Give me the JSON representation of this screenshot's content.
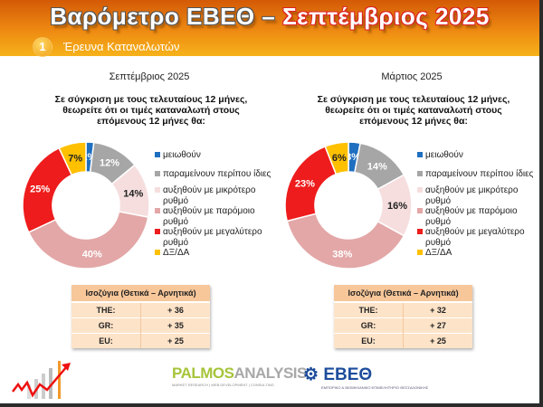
{
  "header": {
    "title_main": "Βαρόμετρο ΕΒΕΘ – ",
    "title_accent": "Σεπτέμβριος 2025",
    "section_number": "1",
    "subtitle": "Έρευνα Καταναλωτών"
  },
  "legend_labels": [
    "μειωθούν",
    "παραμείνουν περίπου ίδιες",
    "αυξηθούν με μικρότερο ρυθμό",
    "αυξηθούν με παρόμοιο ρυθμό",
    "αυξηθούν με μεγαλύτερο ρυθμό",
    "ΔΞ/ΔΑ"
  ],
  "colors": [
    "#1f6fc0",
    "#a6a6a6",
    "#f6dede",
    "#e3a7a7",
    "#ee1c1c",
    "#ffc000"
  ],
  "panels": [
    {
      "period": "Σεπτέμβριος 2025",
      "question": "Σε σύγκριση με τους τελευταίους 12 μήνες, θεωρείτε ότι οι τιμές καταναλωτή στους επόμενους 12 μήνες θα:",
      "values": [
        2,
        12,
        14,
        40,
        25,
        7
      ],
      "table": {
        "header": "Ισοζύγια (Θετικά – Αρνητικά)",
        "rows": [
          [
            "THE:",
            "+ 36"
          ],
          [
            "GR:",
            "+ 35"
          ],
          [
            "EU:",
            "+ 25"
          ]
        ]
      }
    },
    {
      "period": "Μάρτιος 2025",
      "question": "Σε σύγκριση με τους τελευταίους 12 μήνες, θεωρείτε ότι οι τιμές καταναλωτή στους επόμενους 12 μήνες θα:",
      "values": [
        3,
        14,
        16,
        38,
        23,
        6
      ],
      "table": {
        "header": "Ισοζύγια (Θετικά – Αρνητικά)",
        "rows": [
          [
            "THE:",
            "+ 32"
          ],
          [
            "GR:",
            "+ 27"
          ],
          [
            "EU:",
            "+ 25"
          ]
        ]
      }
    }
  ],
  "chart_data": [
    {
      "type": "pie",
      "title": "Σεπτέμβριος 2025",
      "categories": [
        "μειωθούν",
        "παραμείνουν περίπου ίδιες",
        "αυξηθούν με μικρότερο ρυθμό",
        "αυξηθούν με παρόμοιο ρυθμό",
        "αυξηθούν με μεγαλύτερο ρυθμό",
        "ΔΞ/ΔΑ"
      ],
      "values": [
        2,
        12,
        14,
        40,
        25,
        7
      ],
      "legend": "right"
    },
    {
      "type": "pie",
      "title": "Μάρτιος 2025",
      "categories": [
        "μειωθούν",
        "παραμείνουν περίπου ίδιες",
        "αυξηθούν με μικρότερο ρυθμό",
        "αυξηθούν με παρόμοιο ρυθμό",
        "αυξηθούν με μεγαλύτερο ρυθμό",
        "ΔΞ/ΔΑ"
      ],
      "values": [
        3,
        14,
        16,
        38,
        23,
        6
      ],
      "legend": "right"
    }
  ],
  "logos": {
    "palmos_a": "PALMOS",
    "palmos_b": "ANALYSIS",
    "palmos_tag": "MARKET RESEARCH | WEB DEVELOPMENT | CONSULTING",
    "ebeth": "ΕΒΕΘ",
    "ebeth_tag": "ΕΜΠΟΡΙΚΟ & ΒΙΟΜΗΧΑΝΙΚΟ ΕΠΙΜΕΛΗΤΗΡΙΟ ΘΕΣΣΑΛΟΝΙΚΗΣ"
  }
}
